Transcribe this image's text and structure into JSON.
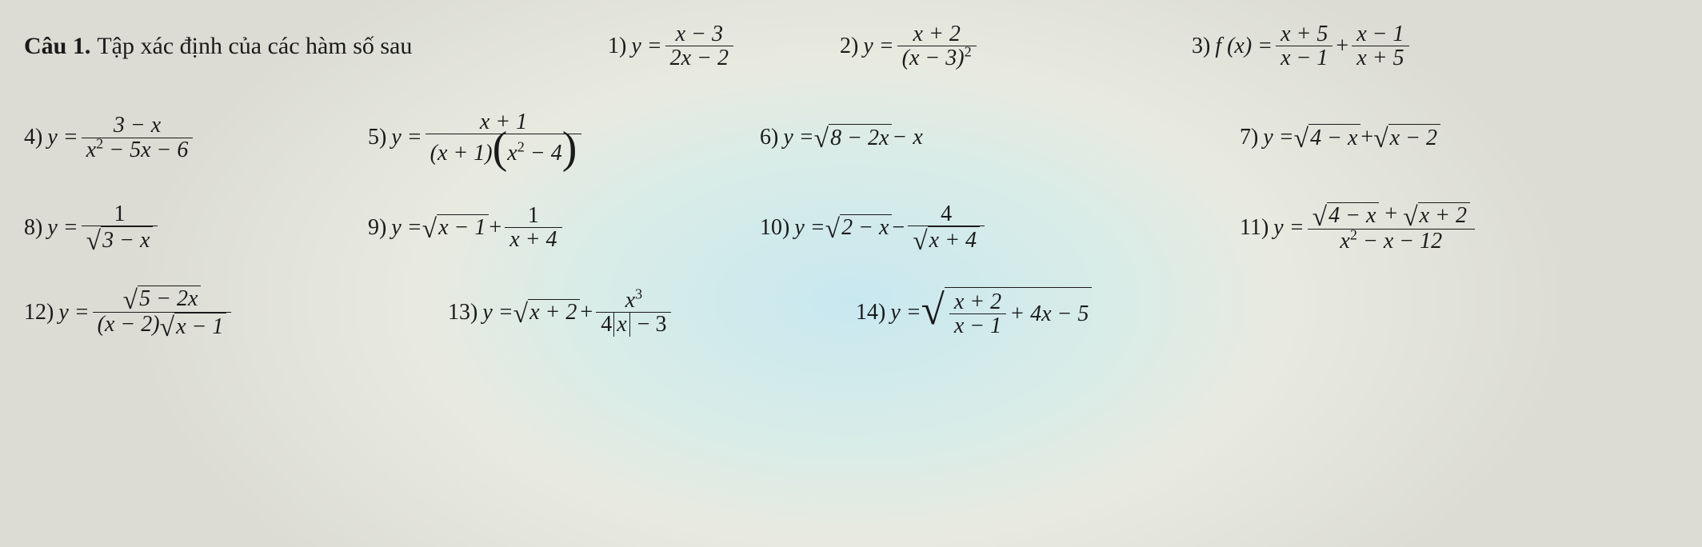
{
  "header": {
    "label": "Câu 1.",
    "prompt": "Tập xác định của các hàm số sau"
  },
  "p": {
    "n1": "1)",
    "n2": "2)",
    "n3": "3)",
    "n4": "4)",
    "n5": "5)",
    "n6": "6)",
    "n7": "7)",
    "n8": "8)",
    "n9": "9)",
    "n10": "10)",
    "n11": "11)",
    "n12": "12)",
    "n13": "13)",
    "n14": "14)"
  },
  "e": {
    "p1": {
      "lhs": "y =",
      "num": "x − 3",
      "den": "2x − 2"
    },
    "p2": {
      "lhs": "y =",
      "num": "x + 2",
      "den_a": "(x − 3)",
      "den_exp": "2"
    },
    "p3": {
      "lhs": "f (x) =",
      "num1": "x + 5",
      "den1": "x − 1",
      "plus": "+",
      "num2": "x − 1",
      "den2": "x + 5"
    },
    "p4": {
      "lhs": "y =",
      "num": "3 − x",
      "den_a": "x",
      "den_exp": "2",
      "den_b": " − 5x − 6"
    },
    "p5": {
      "lhs": "y =",
      "num": "x + 1",
      "den_a": "(x + 1)",
      "den_b": "x",
      "den_exp": "2",
      "den_c": " − 4"
    },
    "p6": {
      "lhs": "y = ",
      "rad": "8 − 2x",
      "tail": " − x"
    },
    "p7": {
      "lhs": "y = ",
      "rad1": "4 − x",
      "plus": " + ",
      "rad2": "x − 2"
    },
    "p8": {
      "lhs": "y =",
      "num": "1",
      "rad": "3 − x"
    },
    "p9": {
      "lhs": "y = ",
      "rad": "x − 1",
      "plus": " + ",
      "num": "1",
      "den": "x + 4"
    },
    "p10": {
      "lhs": "y = ",
      "rad": "2 − x",
      "minus": " − ",
      "num": "4",
      "drad": "x + 4"
    },
    "p11": {
      "lhs": "y =",
      "rad1": "4 − x",
      "plus": " + ",
      "rad2": "x + 2",
      "den_a": "x",
      "den_exp": "2",
      "den_b": " − x − 12"
    },
    "p12": {
      "lhs": "y =",
      "nrad": "5 − 2x",
      "den_a": "(x − 2)",
      "drad": "x − 1"
    },
    "p13": {
      "lhs": "y = ",
      "rad": "x + 2",
      "plus": " + ",
      "num_a": "x",
      "num_exp": "3",
      "den_a": "4",
      "den_abs": "x",
      "den_b": " − 3"
    },
    "p14": {
      "lhs": "y = ",
      "num": "x + 2",
      "den": "x − 1",
      "tail": " + 4x − 5"
    }
  },
  "layout": {
    "r1": [
      0,
      730,
      1020,
      1460
    ],
    "r2": [
      0,
      430,
      920,
      1520
    ],
    "r3": [
      0,
      430,
      920,
      1520
    ],
    "r4": [
      0,
      530,
      1040,
      1520
    ]
  }
}
